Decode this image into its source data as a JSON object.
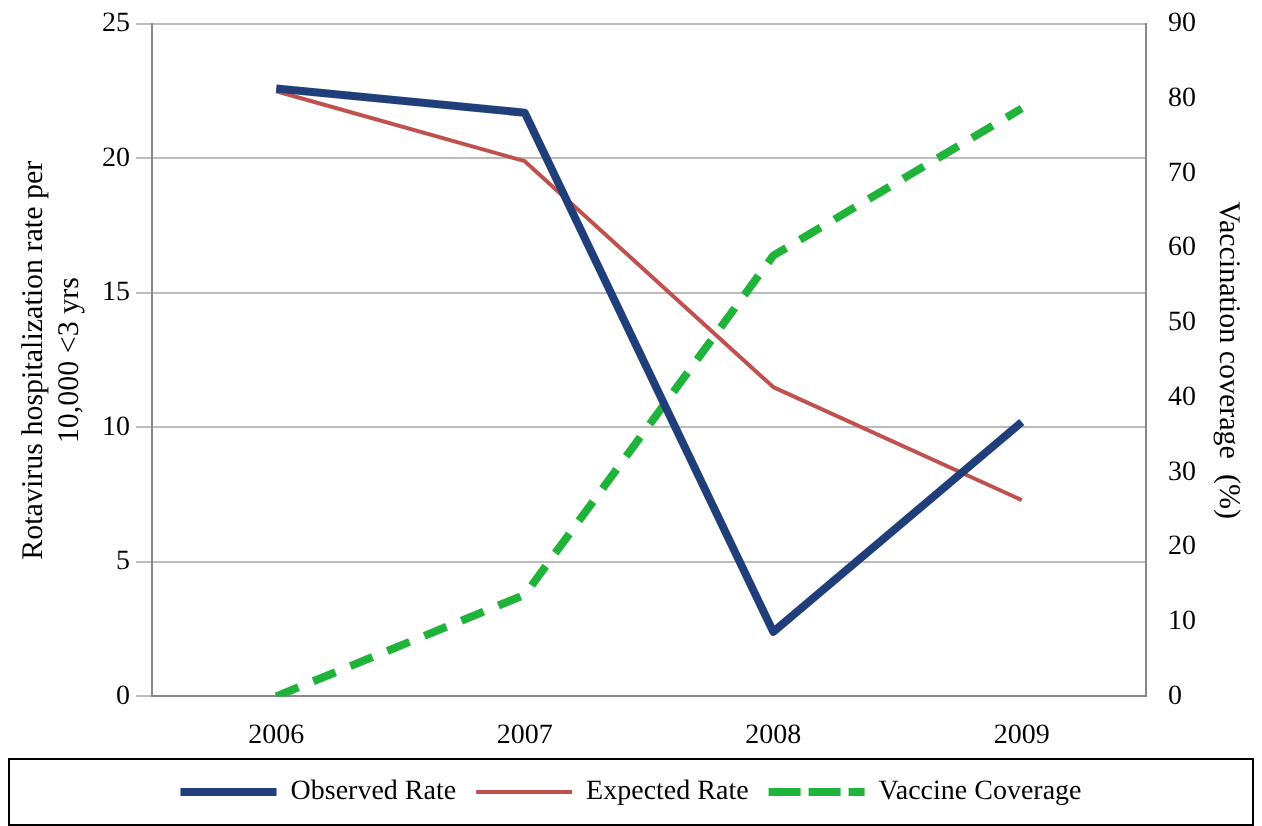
{
  "chart_data": {
    "type": "line",
    "categories": [
      "2006",
      "2007",
      "2008",
      "2009"
    ],
    "ylabel": "Rotavirus hospitalization rate per 10,000 <3 yrs",
    "y2label": "Vaccination coverage  (%)",
    "ylim": [
      0,
      25
    ],
    "yticks": [
      0,
      5,
      10,
      15,
      20,
      25
    ],
    "y2lim": [
      0,
      90
    ],
    "y2ticks": [
      0,
      10,
      20,
      30,
      40,
      50,
      60,
      70,
      80,
      90
    ],
    "grid": "y",
    "legend": "bottom",
    "marker": "none",
    "series": [
      {
        "name": "Observed Rate",
        "color": "#1f3e7a",
        "values": [
          22.6,
          21.7,
          2.4,
          10.2
        ],
        "line_style": "solid"
      },
      {
        "name": "Expected Rate",
        "color": "#c0504d",
        "values": [
          22.5,
          19.9,
          11.5,
          7.3
        ],
        "line_style": "solid"
      },
      {
        "name": "Vaccine Coverage",
        "color": "#1fb33a",
        "values": [
          0,
          13.6,
          59,
          78.7
        ],
        "axis": "y2",
        "line_style": "dashed"
      }
    ]
  }
}
